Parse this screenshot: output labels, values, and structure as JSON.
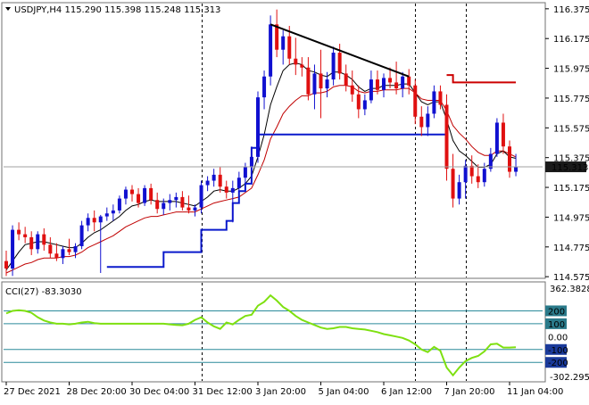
{
  "header": {
    "symbol_info": "USDJPY,H4  115.290 115.398 115.248 115.313"
  },
  "colors": {
    "bull": "#1010d0",
    "bear": "#e01010",
    "ema_fast": "#000000",
    "ema_slow": "#c00000",
    "support_line": "#0a1acc",
    "resistance_line": "#cc0000",
    "trend_line": "#000000",
    "cci_line": "#7ee010",
    "cci_level": "#2a8a9a",
    "level_box_top": "#2a7a8a",
    "level_box_neg": "#1a3a9a",
    "price_box": "#1a1a1a"
  },
  "chart_data": [
    {
      "type": "candlestick",
      "title": "USDJPY,H4",
      "ohlc_readout": {
        "open": 115.29,
        "high": 115.398,
        "low": 115.248,
        "close": 115.313
      },
      "ylim": [
        114.57,
        116.41
      ],
      "y_ticks": [
        116.375,
        116.175,
        115.975,
        115.775,
        115.575,
        115.375,
        115.175,
        114.975,
        114.775,
        114.575
      ],
      "y_tick_labels": [
        "116.375",
        "116.175",
        "115.975",
        "115.775",
        "115.575",
        "115.375",
        "115.175",
        "114.975",
        "114.775",
        "114.575"
      ],
      "current_price_label": "115.313",
      "x_labels": [
        "27 Dec 2021",
        "28 Dec 20:00",
        "30 Dec 04:00",
        "31 Dec 12:00",
        "3 Jan 20:00",
        "5 Jan 04:00",
        "6 Jan 12:00",
        "7 Jan 20:00",
        "11 Jan 04:00"
      ],
      "x_label_index": [
        0,
        10,
        20,
        30,
        40,
        50,
        60,
        70,
        80
      ],
      "separators_index": [
        31,
        65,
        73
      ],
      "candles": [
        {
          "o": 114.68,
          "h": 114.75,
          "l": 114.58,
          "c": 114.63
        },
        {
          "o": 114.63,
          "h": 114.92,
          "l": 114.58,
          "c": 114.89
        },
        {
          "o": 114.89,
          "h": 114.94,
          "l": 114.82,
          "c": 114.86
        },
        {
          "o": 114.86,
          "h": 114.91,
          "l": 114.8,
          "c": 114.84
        },
        {
          "o": 114.84,
          "h": 114.88,
          "l": 114.72,
          "c": 114.76
        },
        {
          "o": 114.76,
          "h": 114.88,
          "l": 114.73,
          "c": 114.86
        },
        {
          "o": 114.86,
          "h": 114.9,
          "l": 114.75,
          "c": 114.79
        },
        {
          "o": 114.79,
          "h": 114.84,
          "l": 114.7,
          "c": 114.73
        },
        {
          "o": 114.73,
          "h": 114.8,
          "l": 114.68,
          "c": 114.7
        },
        {
          "o": 114.7,
          "h": 114.78,
          "l": 114.66,
          "c": 114.76
        },
        {
          "o": 114.76,
          "h": 114.83,
          "l": 114.72,
          "c": 114.74
        },
        {
          "o": 114.74,
          "h": 114.8,
          "l": 114.7,
          "c": 114.78
        },
        {
          "o": 114.78,
          "h": 114.95,
          "l": 114.76,
          "c": 114.92
        },
        {
          "o": 114.92,
          "h": 115.0,
          "l": 114.88,
          "c": 114.97
        },
        {
          "o": 114.97,
          "h": 115.02,
          "l": 114.88,
          "c": 114.94
        },
        {
          "o": 114.94,
          "h": 114.99,
          "l": 114.6,
          "c": 114.98
        },
        {
          "o": 114.98,
          "h": 115.04,
          "l": 114.95,
          "c": 115.0
        },
        {
          "o": 115.0,
          "h": 115.06,
          "l": 114.95,
          "c": 115.02
        },
        {
          "o": 115.02,
          "h": 115.12,
          "l": 115.0,
          "c": 115.1
        },
        {
          "o": 115.1,
          "h": 115.18,
          "l": 115.06,
          "c": 115.16
        },
        {
          "o": 115.16,
          "h": 115.19,
          "l": 115.08,
          "c": 115.13
        },
        {
          "o": 115.13,
          "h": 115.17,
          "l": 115.04,
          "c": 115.07
        },
        {
          "o": 115.07,
          "h": 115.19,
          "l": 115.05,
          "c": 115.17
        },
        {
          "o": 115.17,
          "h": 115.2,
          "l": 115.06,
          "c": 115.09
        },
        {
          "o": 115.09,
          "h": 115.14,
          "l": 115.0,
          "c": 115.03
        },
        {
          "o": 115.03,
          "h": 115.1,
          "l": 114.99,
          "c": 115.07
        },
        {
          "o": 115.07,
          "h": 115.13,
          "l": 115.02,
          "c": 115.09
        },
        {
          "o": 115.09,
          "h": 115.14,
          "l": 115.04,
          "c": 115.11
        },
        {
          "o": 115.11,
          "h": 115.15,
          "l": 115.02,
          "c": 115.04
        },
        {
          "o": 115.04,
          "h": 115.12,
          "l": 115.0,
          "c": 115.02
        },
        {
          "o": 115.02,
          "h": 115.06,
          "l": 114.98,
          "c": 115.04
        },
        {
          "o": 115.04,
          "h": 115.22,
          "l": 115.0,
          "c": 115.19
        },
        {
          "o": 115.19,
          "h": 115.25,
          "l": 115.15,
          "c": 115.22
        },
        {
          "o": 115.22,
          "h": 115.3,
          "l": 115.18,
          "c": 115.26
        },
        {
          "o": 115.26,
          "h": 115.31,
          "l": 115.14,
          "c": 115.18
        },
        {
          "o": 115.18,
          "h": 115.22,
          "l": 115.1,
          "c": 115.14
        },
        {
          "o": 115.14,
          "h": 115.22,
          "l": 114.94,
          "c": 115.17
        },
        {
          "o": 115.17,
          "h": 115.28,
          "l": 115.14,
          "c": 115.24
        },
        {
          "o": 115.24,
          "h": 115.34,
          "l": 115.2,
          "c": 115.31
        },
        {
          "o": 115.31,
          "h": 115.45,
          "l": 115.28,
          "c": 115.38
        },
        {
          "o": 115.38,
          "h": 115.82,
          "l": 115.34,
          "c": 115.78
        },
        {
          "o": 115.78,
          "h": 115.96,
          "l": 115.7,
          "c": 115.92
        },
        {
          "o": 115.92,
          "h": 116.33,
          "l": 115.86,
          "c": 116.27
        },
        {
          "o": 116.27,
          "h": 116.37,
          "l": 116.05,
          "c": 116.1
        },
        {
          "o": 116.1,
          "h": 116.23,
          "l": 116.0,
          "c": 116.19
        },
        {
          "o": 116.19,
          "h": 116.26,
          "l": 116.0,
          "c": 116.04
        },
        {
          "o": 116.04,
          "h": 116.18,
          "l": 115.93,
          "c": 116.0
        },
        {
          "o": 116.0,
          "h": 116.05,
          "l": 115.92,
          "c": 115.98
        },
        {
          "o": 115.98,
          "h": 116.05,
          "l": 115.76,
          "c": 115.8
        },
        {
          "o": 115.8,
          "h": 116.0,
          "l": 115.7,
          "c": 115.94
        },
        {
          "o": 115.94,
          "h": 116.1,
          "l": 115.64,
          "c": 115.84
        },
        {
          "o": 115.84,
          "h": 115.95,
          "l": 115.78,
          "c": 115.9
        },
        {
          "o": 115.9,
          "h": 116.12,
          "l": 115.86,
          "c": 116.08
        },
        {
          "o": 116.08,
          "h": 116.14,
          "l": 115.9,
          "c": 115.94
        },
        {
          "o": 115.94,
          "h": 116.0,
          "l": 115.82,
          "c": 115.86
        },
        {
          "o": 115.86,
          "h": 115.96,
          "l": 115.75,
          "c": 115.8
        },
        {
          "o": 115.8,
          "h": 115.86,
          "l": 115.64,
          "c": 115.7
        },
        {
          "o": 115.7,
          "h": 115.8,
          "l": 115.66,
          "c": 115.76
        },
        {
          "o": 115.76,
          "h": 115.96,
          "l": 115.74,
          "c": 115.9
        },
        {
          "o": 115.9,
          "h": 115.96,
          "l": 115.8,
          "c": 115.83
        },
        {
          "o": 115.83,
          "h": 115.94,
          "l": 115.78,
          "c": 115.91
        },
        {
          "o": 115.91,
          "h": 115.98,
          "l": 115.84,
          "c": 115.88
        },
        {
          "o": 115.88,
          "h": 116.02,
          "l": 115.8,
          "c": 115.84
        },
        {
          "o": 115.84,
          "h": 115.95,
          "l": 115.78,
          "c": 115.92
        },
        {
          "o": 115.92,
          "h": 115.97,
          "l": 115.8,
          "c": 115.86
        },
        {
          "o": 115.86,
          "h": 115.9,
          "l": 115.6,
          "c": 115.65
        },
        {
          "o": 115.65,
          "h": 115.72,
          "l": 115.52,
          "c": 115.58
        },
        {
          "o": 115.58,
          "h": 115.72,
          "l": 115.52,
          "c": 115.67
        },
        {
          "o": 115.67,
          "h": 115.86,
          "l": 115.64,
          "c": 115.82
        },
        {
          "o": 115.82,
          "h": 115.86,
          "l": 115.7,
          "c": 115.73
        },
        {
          "o": 115.73,
          "h": 115.8,
          "l": 115.22,
          "c": 115.3
        },
        {
          "o": 115.3,
          "h": 115.4,
          "l": 115.04,
          "c": 115.1
        },
        {
          "o": 115.1,
          "h": 115.26,
          "l": 115.06,
          "c": 115.21
        },
        {
          "o": 115.21,
          "h": 115.36,
          "l": 115.1,
          "c": 115.32
        },
        {
          "o": 115.32,
          "h": 115.39,
          "l": 115.2,
          "c": 115.25
        },
        {
          "o": 115.25,
          "h": 115.33,
          "l": 115.17,
          "c": 115.21
        },
        {
          "o": 115.21,
          "h": 115.34,
          "l": 115.18,
          "c": 115.3
        },
        {
          "o": 115.3,
          "h": 115.44,
          "l": 115.28,
          "c": 115.4
        },
        {
          "o": 115.4,
          "h": 115.64,
          "l": 115.38,
          "c": 115.61
        },
        {
          "o": 115.61,
          "h": 115.67,
          "l": 115.4,
          "c": 115.45
        },
        {
          "o": 115.45,
          "h": 115.49,
          "l": 115.24,
          "c": 115.28
        },
        {
          "o": 115.28,
          "h": 115.4,
          "l": 115.25,
          "c": 115.31
        }
      ],
      "ema_fast": [
        114.62,
        114.68,
        114.74,
        114.79,
        114.8,
        114.81,
        114.81,
        114.8,
        114.79,
        114.78,
        114.77,
        114.77,
        114.8,
        114.84,
        114.87,
        114.89,
        114.92,
        114.95,
        114.98,
        115.02,
        115.05,
        115.06,
        115.08,
        115.09,
        115.08,
        115.08,
        115.08,
        115.08,
        115.07,
        115.06,
        115.05,
        115.08,
        115.11,
        115.15,
        115.16,
        115.15,
        115.15,
        115.17,
        115.2,
        115.25,
        115.38,
        115.53,
        115.73,
        115.85,
        115.96,
        116.0,
        116.01,
        116.0,
        115.96,
        115.95,
        115.93,
        115.92,
        115.95,
        115.95,
        115.93,
        115.9,
        115.85,
        115.82,
        115.84,
        115.84,
        115.86,
        115.86,
        115.86,
        115.87,
        115.87,
        115.81,
        115.75,
        115.73,
        115.75,
        115.75,
        115.63,
        115.49,
        115.42,
        115.39,
        115.35,
        115.31,
        115.31,
        115.33,
        115.4,
        115.42,
        115.38,
        115.37
      ],
      "ema_slow": [
        114.6,
        114.62,
        114.64,
        114.66,
        114.67,
        114.69,
        114.7,
        114.7,
        114.7,
        114.71,
        114.71,
        114.72,
        114.74,
        114.77,
        114.79,
        114.81,
        114.83,
        114.85,
        114.88,
        114.91,
        114.93,
        114.95,
        114.97,
        114.98,
        114.98,
        114.99,
        115.0,
        115.01,
        115.01,
        115.01,
        115.01,
        115.03,
        115.05,
        115.07,
        115.08,
        115.09,
        115.1,
        115.11,
        115.14,
        115.17,
        115.26,
        115.36,
        115.5,
        115.58,
        115.67,
        115.72,
        115.76,
        115.79,
        115.79,
        115.81,
        115.81,
        115.82,
        115.85,
        115.86,
        115.86,
        115.85,
        115.82,
        115.81,
        115.82,
        115.82,
        115.83,
        115.83,
        115.83,
        115.84,
        115.84,
        115.81,
        115.77,
        115.76,
        115.76,
        115.76,
        115.69,
        115.59,
        115.54,
        115.5,
        115.45,
        115.41,
        115.39,
        115.39,
        115.42,
        115.42,
        115.4,
        115.38
      ],
      "support_line": [
        {
          "x0": 16,
          "x1": 25,
          "y": 114.64
        },
        {
          "x0": 25,
          "x1": 31,
          "y": 114.74
        },
        {
          "x0": 31,
          "x1": 35,
          "y": 114.89
        },
        {
          "x0": 35,
          "x1": 36,
          "y": 114.95
        },
        {
          "x0": 36,
          "x1": 37,
          "y": 115.07
        },
        {
          "x0": 37,
          "x1": 38,
          "y": 115.15
        },
        {
          "x0": 38,
          "x1": 39,
          "y": 115.2
        },
        {
          "x0": 39,
          "x1": 40,
          "y": 115.44
        },
        {
          "x0": 40,
          "x1": 70,
          "y": 115.53
        }
      ],
      "resistance_line": [
        {
          "x0": 70,
          "x1": 71,
          "y": 115.93
        },
        {
          "x0": 71,
          "x1": 81,
          "y": 115.88
        }
      ],
      "trend_line": {
        "x0": 42,
        "y0": 116.27,
        "x1": 64,
        "y1": 115.92
      }
    },
    {
      "type": "line",
      "title": "CCI(27) -83.3030",
      "ylim": [
        -302.2957,
        362.3828
      ],
      "max_label": "362.3828",
      "min_label": "-302.2957",
      "levels": [
        200,
        100,
        0,
        -100,
        -200
      ],
      "level_labels": [
        "200",
        "100",
        "0.00",
        "-100",
        "-200"
      ],
      "boxed_levels": [
        200,
        100,
        -100,
        -200
      ],
      "values": [
        180,
        200,
        205,
        200,
        185,
        150,
        125,
        110,
        100,
        100,
        95,
        100,
        110,
        115,
        105,
        100,
        100,
        100,
        100,
        100,
        100,
        100,
        100,
        100,
        100,
        100,
        95,
        90,
        88,
        100,
        130,
        150,
        110,
        80,
        60,
        110,
        95,
        130,
        160,
        170,
        240,
        270,
        320,
        280,
        230,
        200,
        160,
        130,
        110,
        90,
        70,
        60,
        65,
        75,
        75,
        65,
        60,
        55,
        45,
        35,
        20,
        10,
        0,
        -10,
        -30,
        -60,
        -100,
        -120,
        -80,
        -110,
        -240,
        -300,
        -240,
        -190,
        -165,
        -150,
        -115,
        -60,
        -55,
        -85,
        -85,
        -83
      ]
    }
  ]
}
